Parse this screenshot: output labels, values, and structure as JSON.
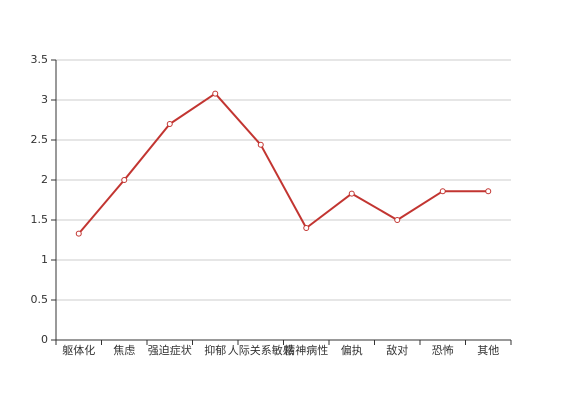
{
  "chart_data": {
    "type": "line",
    "categories": [
      "躯体化",
      "焦虑",
      "强迫症状",
      "抑郁",
      "人际关系敏感",
      "精神病性",
      "偏执",
      "敌对",
      "恐怖",
      "其他"
    ],
    "series": [
      {
        "values": [
          1.33,
          2.0,
          2.7,
          3.08,
          2.44,
          1.4,
          1.83,
          1.5,
          1.86,
          1.86
        ]
      }
    ],
    "title": "",
    "xlabel": "",
    "ylabel": "",
    "ylim": [
      0,
      3.5
    ],
    "yticks": [
      "0",
      "0.5",
      "1",
      "1.5",
      "2",
      "2.5",
      "3",
      "3.5"
    ],
    "grid": true,
    "line_color": "#c23531",
    "marker_fill": "#ffffff"
  }
}
